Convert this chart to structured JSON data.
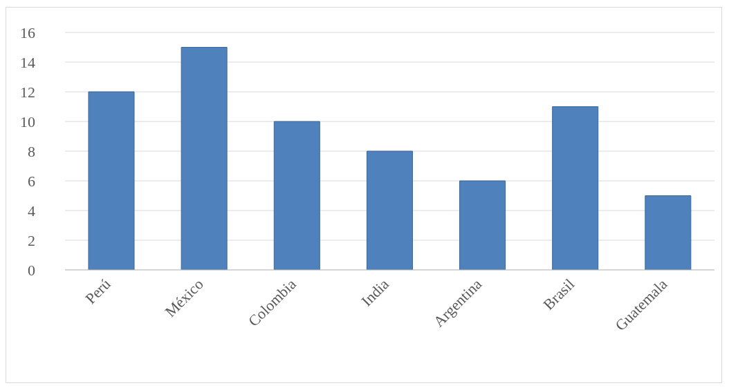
{
  "chart_data": {
    "type": "bar",
    "categories": [
      "Perú",
      "México",
      "Colombia",
      "India",
      "Argentina",
      "Brasil",
      "Guatemala"
    ],
    "values": [
      12,
      15,
      10,
      8,
      6,
      11,
      5
    ],
    "color": "#4f81bd",
    "ylim": [
      0,
      16
    ],
    "yticks": [
      0,
      2,
      4,
      6,
      8,
      10,
      12,
      14,
      16
    ],
    "grid": "y",
    "legend": false
  }
}
